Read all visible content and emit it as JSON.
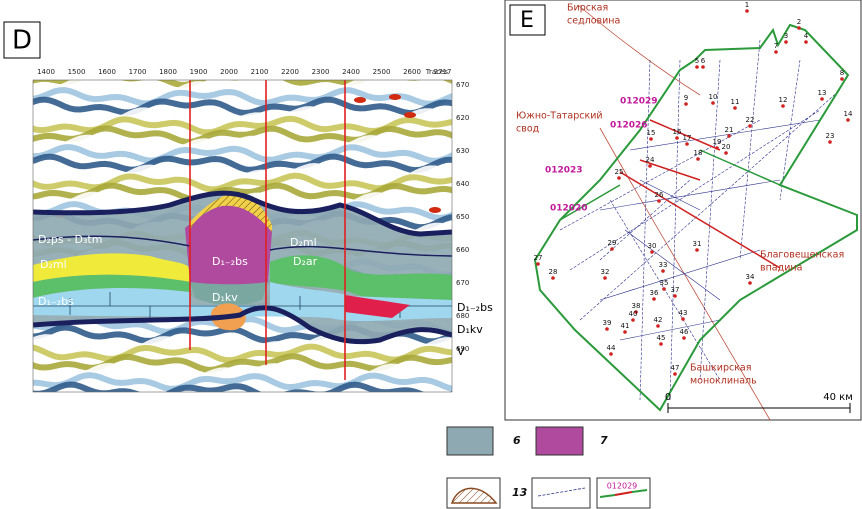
{
  "panel_d": {
    "label": "D",
    "traces": [
      "1400",
      "1500",
      "1600",
      "1700",
      "1800",
      "1900",
      "2000",
      "2100",
      "2200",
      "2300",
      "2400",
      "2500",
      "2600",
      "2717"
    ],
    "traces_title": "Traces",
    "times": [
      "670",
      "620",
      "630",
      "640",
      "650",
      "660",
      "670",
      "680",
      "690"
    ],
    "formations": [
      "D₂ps - D₃tm",
      "D₂ml",
      "D₂ml",
      "D₁₋₂bs",
      "D₂ar",
      "D₁kv",
      "D₁₋₂bs"
    ],
    "right_labels": [
      "D₁₋₂bs",
      "D₁kv",
      "V"
    ]
  },
  "panel_e": {
    "label": "E",
    "regions": [
      [
        "Бирская",
        "седловина"
      ],
      [
        "Южно-Татарский",
        "свод"
      ],
      [
        "Благовещенская",
        "впадина"
      ],
      [
        "Башкирская",
        "моноклиналь"
      ]
    ],
    "profiles": [
      "012029",
      "012026",
      "012023",
      "012020"
    ],
    "wells": [
      "1",
      "2",
      "3",
      "4",
      "5",
      "6",
      "7",
      "8",
      "9",
      "10",
      "11",
      "12",
      "13",
      "14",
      "15",
      "16",
      "17",
      "18",
      "19",
      "20",
      "21",
      "22",
      "23",
      "24",
      "25",
      "26",
      "27",
      "28",
      "29",
      "30",
      "31",
      "32",
      "33",
      "34",
      "35",
      "36",
      "37",
      "38",
      "39",
      "40",
      "41",
      "42",
      "43",
      "44",
      "45",
      "46",
      "47"
    ],
    "scale": [
      "0",
      "40 км"
    ]
  },
  "legend": {
    "items": [
      "6",
      "7",
      "13"
    ],
    "profile_sample": "012029"
  }
}
